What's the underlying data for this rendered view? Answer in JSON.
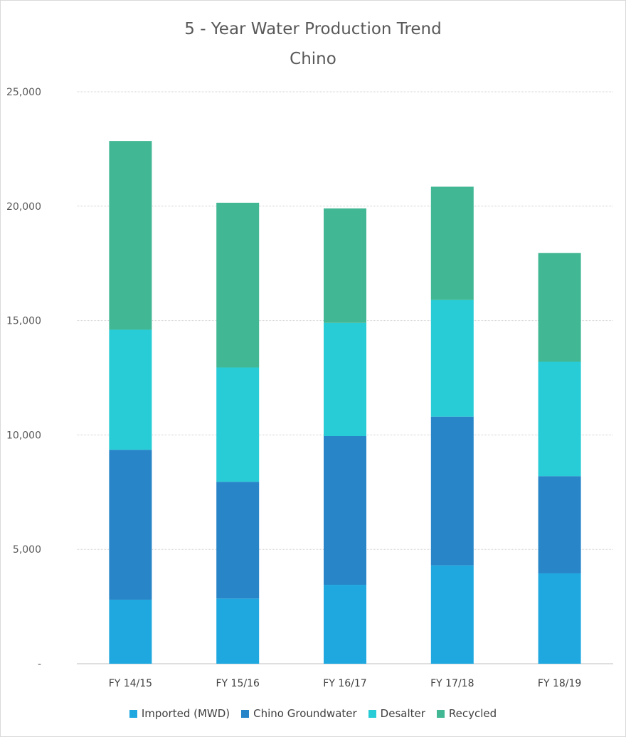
{
  "chart_data": {
    "type": "bar",
    "stacked": true,
    "title": "5 - Year Water Production Trend",
    "subtitle": "Chino",
    "categories": [
      "FY 14/15",
      "FY 15/16",
      "FY 16/17",
      "FY 17/18",
      "FY 18/19"
    ],
    "ylim": [
      0,
      25000
    ],
    "yticks": [
      0,
      5000,
      10000,
      15000,
      20000,
      25000
    ],
    "ytick_labels": [
      "-",
      "5,000",
      "10,000",
      "15,000",
      "20,000",
      "25,000"
    ],
    "grid": true,
    "legend_position": "bottom",
    "series": [
      {
        "name": "Imported (MWD)",
        "color": "#1FA8E0",
        "values": [
          2800,
          2850,
          3450,
          4300,
          3950
        ]
      },
      {
        "name": "Chino Groundwater",
        "color": "#2785C8",
        "values": [
          6550,
          5100,
          6500,
          6500,
          4250
        ]
      },
      {
        "name": "Desalter",
        "color": "#28CCD6",
        "values": [
          5250,
          5000,
          4950,
          5100,
          5000
        ]
      },
      {
        "name": "Recycled",
        "color": "#42B794",
        "values": [
          8250,
          7200,
          5000,
          4950,
          4750
        ]
      }
    ]
  }
}
